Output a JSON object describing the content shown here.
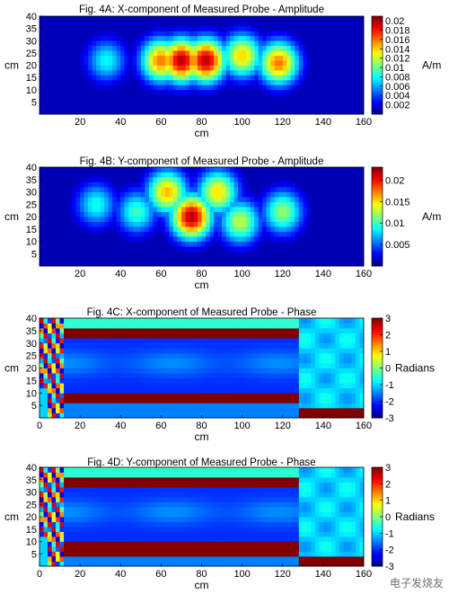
{
  "chart_data": [
    {
      "type": "heatmap",
      "title": "Fig. 4A: X-component of Measured Probe - Amplitude",
      "xlabel": "cm",
      "ylabel": "cm",
      "xlim": [
        0,
        160
      ],
      "ylim": [
        0,
        40
      ],
      "xticks": [
        20,
        40,
        60,
        80,
        100,
        120,
        140,
        160
      ],
      "yticks": [
        5,
        10,
        15,
        20,
        25,
        30,
        35,
        40
      ],
      "colormap": "jet",
      "colorbar": {
        "label": "A/m",
        "range": [
          0,
          0.021
        ],
        "ticks": [
          "0.002",
          "0.004",
          "0.006",
          "0.008",
          "0.01",
          "0.012",
          "0.014",
          "0.016",
          "0.018",
          "0.02"
        ]
      },
      "blobs": [
        {
          "x": 70,
          "y": 22,
          "peak": 0.02
        },
        {
          "x": 82,
          "y": 22,
          "peak": 0.02
        },
        {
          "x": 60,
          "y": 22,
          "peak": 0.016
        },
        {
          "x": 100,
          "y": 24,
          "peak": 0.014
        },
        {
          "x": 118,
          "y": 21,
          "peak": 0.016
        },
        {
          "x": 33,
          "y": 22,
          "peak": 0.008
        }
      ]
    },
    {
      "type": "heatmap",
      "title": "Fig. 4B: Y-component of Measured Probe - Amplitude",
      "xlabel": "cm",
      "ylabel": "cm",
      "xlim": [
        0,
        160
      ],
      "ylim": [
        0,
        40
      ],
      "xticks": [
        20,
        40,
        60,
        80,
        100,
        120,
        140,
        160
      ],
      "yticks": [
        5,
        10,
        15,
        20,
        25,
        30,
        35,
        40
      ],
      "colormap": "jet",
      "colorbar": {
        "label": "A/m",
        "range": [
          0,
          0.023
        ],
        "ticks": [
          "0.005",
          "0.01",
          "0.015",
          "0.02"
        ]
      },
      "blobs": [
        {
          "x": 75,
          "y": 20,
          "peak": 0.022
        },
        {
          "x": 63,
          "y": 30,
          "peak": 0.016
        },
        {
          "x": 88,
          "y": 30,
          "peak": 0.015
        },
        {
          "x": 48,
          "y": 22,
          "peak": 0.01
        },
        {
          "x": 99,
          "y": 18,
          "peak": 0.013
        },
        {
          "x": 120,
          "y": 22,
          "peak": 0.012
        },
        {
          "x": 28,
          "y": 25,
          "peak": 0.009
        }
      ]
    },
    {
      "type": "heatmap",
      "title": "Fig. 4C: X-component of Measured Probe - Phase",
      "xlabel": "cm",
      "ylabel": "cm",
      "xlim": [
        0,
        160
      ],
      "ylim": [
        0,
        40
      ],
      "xticks": [
        0,
        20,
        40,
        60,
        80,
        100,
        120,
        140,
        160
      ],
      "yticks": [
        5,
        10,
        15,
        20,
        25,
        30,
        35,
        40
      ],
      "colormap": "jet",
      "colorbar": {
        "label": "Radians",
        "range": [
          -3,
          3
        ],
        "ticks": [
          "3",
          "2",
          "1",
          "0",
          "-1",
          "-2",
          "-3"
        ]
      },
      "description_values": {
        "edge_bands_y": [
          8,
          34
        ],
        "edge_band_phase": 3,
        "interior_phase": -2,
        "right_region_start_x": 128,
        "right_region_phase": -1
      }
    },
    {
      "type": "heatmap",
      "title": "Fig. 4D: Y-component of Measured Probe - Phase",
      "xlabel": "cm",
      "ylabel": "cm",
      "xlim": [
        0,
        160
      ],
      "ylim": [
        0,
        40
      ],
      "xticks": [
        0,
        20,
        40,
        60,
        80,
        100,
        120,
        140,
        160
      ],
      "yticks": [
        5,
        10,
        15,
        20,
        25,
        30,
        35,
        40
      ],
      "colormap": "jet",
      "colorbar": {
        "label": "Radians",
        "range": [
          -3,
          3
        ],
        "ticks": [
          "3",
          "2",
          "1",
          "0",
          "-1",
          "-2",
          "-3"
        ]
      },
      "description_values": {
        "edge_bands_y": [
          7,
          34
        ],
        "edge_band_phase": 3,
        "interior_phase": -2,
        "right_region_start_x": 128,
        "right_region_phase": -1
      }
    }
  ],
  "watermark": "电子发烧友"
}
